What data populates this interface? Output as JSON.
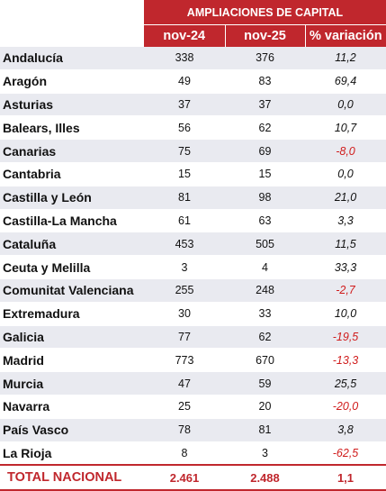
{
  "header": {
    "group_title": "AMPLIACIONES DE CAPITAL",
    "columns": [
      "nov-24",
      "nov-25",
      "% variación"
    ]
  },
  "rows": [
    {
      "region": "Andalucía",
      "nov24": "338",
      "nov25": "376",
      "variation": "11,2",
      "negative": false
    },
    {
      "region": "Aragón",
      "nov24": "49",
      "nov25": "83",
      "variation": "69,4",
      "negative": false
    },
    {
      "region": "Asturias",
      "nov24": "37",
      "nov25": "37",
      "variation": "0,0",
      "negative": false
    },
    {
      "region": "Balears, Illes",
      "nov24": "56",
      "nov25": "62",
      "variation": "10,7",
      "negative": false
    },
    {
      "region": "Canarias",
      "nov24": "75",
      "nov25": "69",
      "variation": "-8,0",
      "negative": true
    },
    {
      "region": "Cantabria",
      "nov24": "15",
      "nov25": "15",
      "variation": "0,0",
      "negative": false
    },
    {
      "region": "Castilla y León",
      "nov24": "81",
      "nov25": "98",
      "variation": "21,0",
      "negative": false
    },
    {
      "region": "Castilla-La Mancha",
      "nov24": "61",
      "nov25": "63",
      "variation": "3,3",
      "negative": false
    },
    {
      "region": "Cataluña",
      "nov24": "453",
      "nov25": "505",
      "variation": "11,5",
      "negative": false
    },
    {
      "region": "Ceuta y Melilla",
      "nov24": "3",
      "nov25": "4",
      "variation": "33,3",
      "negative": false
    },
    {
      "region": "Comunitat Valenciana",
      "nov24": "255",
      "nov25": "248",
      "variation": "-2,7",
      "negative": true
    },
    {
      "region": "Extremadura",
      "nov24": "30",
      "nov25": "33",
      "variation": "10,0",
      "negative": false
    },
    {
      "region": "Galicia",
      "nov24": "77",
      "nov25": "62",
      "variation": "-19,5",
      "negative": true
    },
    {
      "region": "Madrid",
      "nov24": "773",
      "nov25": "670",
      "variation": "-13,3",
      "negative": true
    },
    {
      "region": "Murcia",
      "nov24": "47",
      "nov25": "59",
      "variation": "25,5",
      "negative": false
    },
    {
      "region": "Navarra",
      "nov24": "25",
      "nov25": "20",
      "variation": "-20,0",
      "negative": true
    },
    {
      "region": "País Vasco",
      "nov24": "78",
      "nov25": "81",
      "variation": "3,8",
      "negative": false
    },
    {
      "region": "La Rioja",
      "nov24": "8",
      "nov25": "3",
      "variation": "-62,5",
      "negative": true
    }
  ],
  "total": {
    "region": "TOTAL NACIONAL",
    "nov24": "2.461",
    "nov25": "2.488",
    "variation": "1,1"
  },
  "colors": {
    "header": "#c0272d",
    "negative": "#d01c1c",
    "band": "#e9eaf0"
  }
}
